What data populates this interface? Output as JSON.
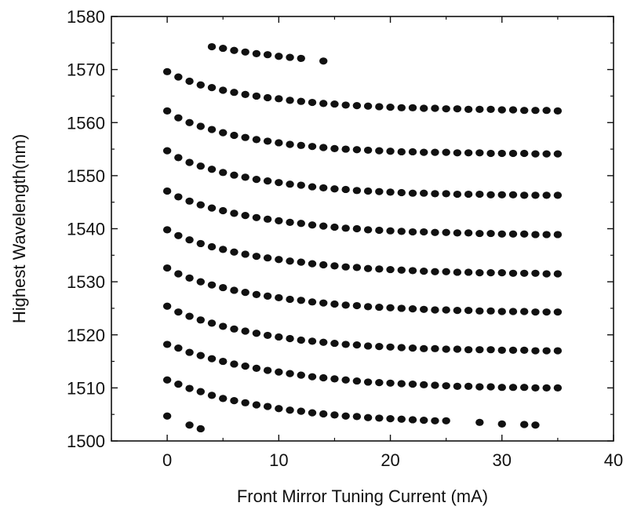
{
  "chart_data": {
    "type": "scatter",
    "xlabel": "Front Mirror Tuning Current (mA)",
    "ylabel": "Highest Wavelength(nm)",
    "xlim": [
      -5,
      40
    ],
    "ylim": [
      1500,
      1580
    ],
    "xticks": [
      0,
      10,
      20,
      30,
      40
    ],
    "yticks": [
      1500,
      1510,
      1520,
      1530,
      1540,
      1550,
      1560,
      1570,
      1580
    ],
    "grid": false,
    "marker_color": "#111111",
    "series": [
      {
        "x": [
          0,
          2,
          3,
          25,
          28,
          30,
          32,
          33
        ],
        "y": [
          1504.7,
          1503.0,
          1502.3,
          1503.8,
          1503.5,
          1503.2,
          1503.1,
          1503.0
        ]
      },
      {
        "x": [
          0,
          1,
          2,
          3,
          4,
          5,
          6,
          7,
          8,
          9,
          10,
          11,
          12,
          13,
          14,
          15,
          16,
          17,
          18,
          19,
          20,
          21,
          22,
          23,
          24
        ],
        "y": [
          1511.5,
          1510.7,
          1509.9,
          1509.3,
          1508.6,
          1508.0,
          1507.6,
          1507.2,
          1506.8,
          1506.5,
          1506.1,
          1505.8,
          1505.6,
          1505.3,
          1505.1,
          1504.9,
          1504.7,
          1504.6,
          1504.4,
          1504.3,
          1504.2,
          1504.1,
          1504.0,
          1503.9,
          1503.8
        ]
      },
      {
        "x": [
          0,
          1,
          2,
          3,
          4,
          5,
          6,
          7,
          8,
          9,
          10,
          11,
          12,
          13,
          14,
          15,
          16,
          17,
          18,
          19,
          20,
          21,
          22,
          23,
          24,
          25,
          26,
          27,
          28,
          29,
          30,
          31,
          32,
          33,
          34,
          35
        ],
        "y": [
          1518.2,
          1517.5,
          1516.7,
          1516.1,
          1515.5,
          1515.0,
          1514.5,
          1514.1,
          1513.7,
          1513.3,
          1513.0,
          1512.7,
          1512.4,
          1512.1,
          1511.9,
          1511.7,
          1511.5,
          1511.3,
          1511.1,
          1511.0,
          1510.9,
          1510.8,
          1510.7,
          1510.6,
          1510.5,
          1510.4,
          1510.3,
          1510.3,
          1510.2,
          1510.2,
          1510.1,
          1510.1,
          1510.1,
          1510.0,
          1510.0,
          1510.0
        ]
      },
      {
        "x": [
          0,
          1,
          2,
          3,
          4,
          5,
          6,
          7,
          8,
          9,
          10,
          11,
          12,
          13,
          14,
          15,
          16,
          17,
          18,
          19,
          20,
          21,
          22,
          23,
          24,
          25,
          26,
          27,
          28,
          29,
          30,
          31,
          32,
          33,
          34,
          35
        ],
        "y": [
          1525.4,
          1524.3,
          1523.5,
          1522.8,
          1522.2,
          1521.6,
          1521.1,
          1520.7,
          1520.3,
          1519.9,
          1519.6,
          1519.3,
          1519.0,
          1518.8,
          1518.6,
          1518.4,
          1518.2,
          1518.1,
          1517.9,
          1517.8,
          1517.7,
          1517.6,
          1517.5,
          1517.4,
          1517.4,
          1517.3,
          1517.3,
          1517.2,
          1517.2,
          1517.2,
          1517.1,
          1517.1,
          1517.1,
          1517.0,
          1517.0,
          1517.0
        ]
      },
      {
        "x": [
          0,
          1,
          2,
          3,
          4,
          5,
          6,
          7,
          8,
          9,
          10,
          11,
          12,
          13,
          14,
          15,
          16,
          17,
          18,
          19,
          20,
          21,
          22,
          23,
          24,
          25,
          26,
          27,
          28,
          29,
          30,
          31,
          32,
          33,
          34,
          35
        ],
        "y": [
          1532.6,
          1531.5,
          1530.7,
          1530.0,
          1529.4,
          1528.9,
          1528.4,
          1528.0,
          1527.6,
          1527.3,
          1527.0,
          1526.7,
          1526.5,
          1526.2,
          1526.0,
          1525.8,
          1525.6,
          1525.5,
          1525.3,
          1525.2,
          1525.1,
          1525.0,
          1524.9,
          1524.8,
          1524.7,
          1524.7,
          1524.6,
          1524.6,
          1524.5,
          1524.5,
          1524.4,
          1524.4,
          1524.4,
          1524.3,
          1524.3,
          1524.3
        ]
      },
      {
        "x": [
          0,
          1,
          2,
          3,
          4,
          5,
          6,
          7,
          8,
          9,
          10,
          11,
          12,
          13,
          14,
          15,
          16,
          17,
          18,
          19,
          20,
          21,
          22,
          23,
          24,
          25,
          26,
          27,
          28,
          29,
          30,
          31,
          32,
          33,
          34,
          35
        ],
        "y": [
          1539.8,
          1538.7,
          1537.9,
          1537.2,
          1536.6,
          1536.1,
          1535.6,
          1535.2,
          1534.8,
          1534.5,
          1534.2,
          1533.9,
          1533.7,
          1533.4,
          1533.2,
          1533.0,
          1532.8,
          1532.7,
          1532.5,
          1532.4,
          1532.3,
          1532.2,
          1532.1,
          1532.0,
          1531.9,
          1531.9,
          1531.8,
          1531.8,
          1531.7,
          1531.7,
          1531.7,
          1531.6,
          1531.6,
          1531.6,
          1531.5,
          1531.5
        ]
      },
      {
        "x": [
          0,
          1,
          2,
          3,
          4,
          5,
          6,
          7,
          8,
          9,
          10,
          11,
          12,
          13,
          14,
          15,
          16,
          17,
          18,
          19,
          20,
          21,
          22,
          23,
          24,
          25,
          26,
          27,
          28,
          29,
          30,
          31,
          32,
          33,
          34,
          35
        ],
        "y": [
          1547.1,
          1546.0,
          1545.2,
          1544.5,
          1543.9,
          1543.4,
          1542.9,
          1542.5,
          1542.1,
          1541.8,
          1541.5,
          1541.2,
          1541.0,
          1540.7,
          1540.5,
          1540.3,
          1540.1,
          1540.0,
          1539.8,
          1539.7,
          1539.6,
          1539.5,
          1539.4,
          1539.4,
          1539.3,
          1539.3,
          1539.2,
          1539.2,
          1539.1,
          1539.1,
          1539.0,
          1539.0,
          1539.0,
          1538.9,
          1538.9,
          1538.9
        ]
      },
      {
        "x": [
          0,
          1,
          2,
          3,
          4,
          5,
          6,
          7,
          8,
          9,
          10,
          11,
          12,
          13,
          14,
          15,
          16,
          17,
          18,
          19,
          20,
          21,
          22,
          23,
          24,
          25,
          26,
          27,
          28,
          29,
          30,
          31,
          32,
          33,
          34,
          35
        ],
        "y": [
          1554.7,
          1553.4,
          1552.5,
          1551.8,
          1551.2,
          1550.6,
          1550.1,
          1549.7,
          1549.3,
          1549.0,
          1548.7,
          1548.4,
          1548.2,
          1547.9,
          1547.7,
          1547.5,
          1547.4,
          1547.2,
          1547.1,
          1547.0,
          1546.9,
          1546.8,
          1546.7,
          1546.7,
          1546.6,
          1546.6,
          1546.5,
          1546.5,
          1546.5,
          1546.4,
          1546.4,
          1546.4,
          1546.3,
          1546.3,
          1546.3,
          1546.3
        ]
      },
      {
        "x": [
          0,
          1,
          2,
          3,
          4,
          5,
          6,
          7,
          8,
          9,
          10,
          11,
          12,
          13,
          14,
          15,
          16,
          17,
          18,
          19,
          20,
          21,
          22,
          23,
          24,
          25,
          26,
          27,
          28,
          29,
          30,
          31,
          32,
          33,
          34,
          35
        ],
        "y": [
          1562.2,
          1560.9,
          1560.0,
          1559.3,
          1558.7,
          1558.1,
          1557.6,
          1557.2,
          1556.8,
          1556.5,
          1556.2,
          1555.9,
          1555.7,
          1555.5,
          1555.3,
          1555.1,
          1555.0,
          1554.9,
          1554.8,
          1554.7,
          1554.6,
          1554.5,
          1554.5,
          1554.4,
          1554.4,
          1554.4,
          1554.3,
          1554.3,
          1554.3,
          1554.2,
          1554.2,
          1554.2,
          1554.2,
          1554.1,
          1554.1,
          1554.1
        ]
      },
      {
        "x": [
          0,
          1,
          2,
          3,
          4,
          5,
          6,
          7,
          8,
          9,
          10,
          11,
          12,
          13,
          14,
          15,
          16,
          17,
          18,
          19,
          20,
          21,
          22,
          23,
          24,
          25,
          26,
          27,
          28,
          29,
          30,
          31,
          32,
          33,
          34,
          35
        ],
        "y": [
          1569.6,
          1568.6,
          1567.8,
          1567.1,
          1566.6,
          1566.1,
          1565.7,
          1565.3,
          1565.0,
          1564.7,
          1564.5,
          1564.2,
          1564.0,
          1563.8,
          1563.6,
          1563.5,
          1563.3,
          1563.2,
          1563.1,
          1563.0,
          1562.9,
          1562.8,
          1562.8,
          1562.7,
          1562.7,
          1562.6,
          1562.6,
          1562.5,
          1562.5,
          1562.5,
          1562.4,
          1562.4,
          1562.3,
          1562.3,
          1562.3,
          1562.2
        ]
      },
      {
        "x": [
          4,
          5,
          6,
          7,
          8,
          9,
          10,
          11,
          12,
          14
        ],
        "y": [
          1574.3,
          1574.0,
          1573.6,
          1573.3,
          1573.0,
          1572.8,
          1572.5,
          1572.3,
          1572.1,
          1571.6
        ]
      }
    ]
  }
}
